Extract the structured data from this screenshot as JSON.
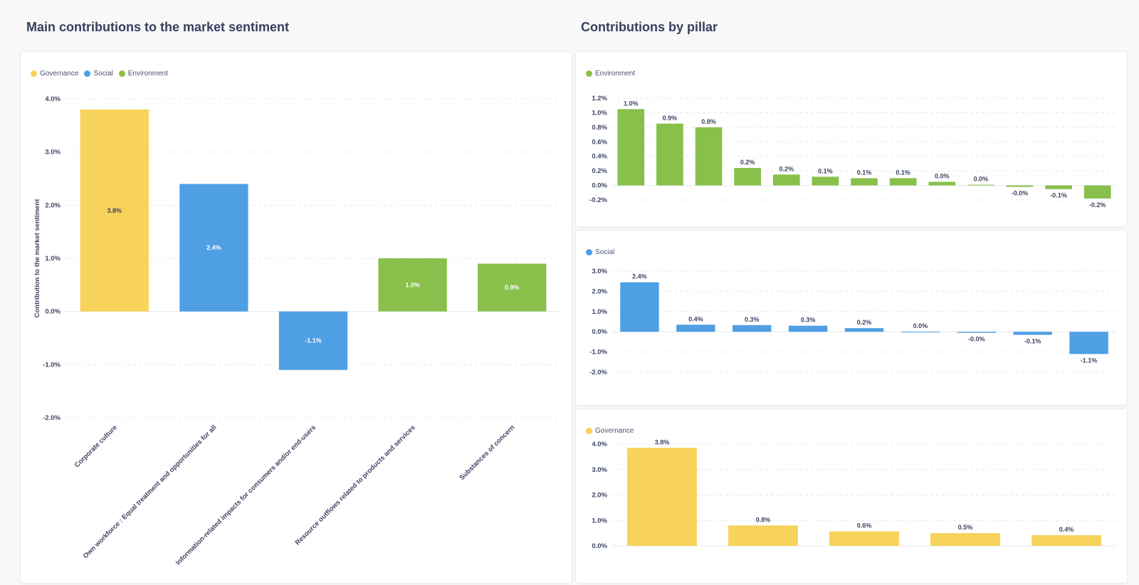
{
  "main": {
    "title": "Main contributions to the market sentiment"
  },
  "pillar": {
    "title": "Contributions by pillar"
  },
  "colors": {
    "Governance": "#f8d35b",
    "Social": "#4e9fe4",
    "Environment": "#88c04b"
  },
  "chart_data": [
    {
      "type": "bar",
      "title": "Main contributions to the market sentiment",
      "ylabel": "Contribution to the market sentiment",
      "xlabel": "",
      "legend": [
        "Governance",
        "Social",
        "Environment"
      ],
      "categories": [
        "Corporate culture",
        "Own workforce : Equal treatment and opportunities for all",
        "Information-related impacts for consumers and/or end-users",
        "Resource outflows related to products and services",
        "Substances of concern"
      ],
      "series_of_bar": [
        "Governance",
        "Social",
        "Social",
        "Environment",
        "Environment"
      ],
      "values": [
        3.8,
        2.4,
        -1.1,
        1.0,
        0.9
      ],
      "value_labels": [
        "3.8%",
        "2.4%",
        "-1.1%",
        "1.0%",
        "0.9%"
      ],
      "ylim": [
        -2.0,
        4.0
      ],
      "yticks": [
        4.0,
        3.0,
        2.0,
        1.0,
        0.0,
        -1.0,
        -2.0
      ],
      "ytick_labels": [
        "4.0%",
        "3.0%",
        "2.0%",
        "1.0%",
        "0.0%",
        "-1.0%",
        "-2.0%"
      ]
    },
    {
      "type": "bar",
      "title": "Environment",
      "legend": [
        "Environment"
      ],
      "values": [
        1.05,
        0.85,
        0.8,
        0.24,
        0.15,
        0.12,
        0.1,
        0.1,
        0.05,
        0.01,
        -0.02,
        -0.05,
        -0.18
      ],
      "value_labels": [
        "1.0%",
        "0.9%",
        "0.8%",
        "0.2%",
        "0.2%",
        "0.1%",
        "0.1%",
        "0.1%",
        "0.0%",
        "0.0%",
        "-0.0%",
        "-0.1%",
        "-0.2%"
      ],
      "ylim": [
        -0.2,
        1.2
      ],
      "yticks": [
        1.2,
        1.0,
        0.8,
        0.6,
        0.4,
        0.2,
        0.0,
        -0.2
      ],
      "ytick_labels": [
        "1.2%",
        "1.0%",
        "0.8%",
        "0.6%",
        "0.4%",
        "0.2%",
        "0.0%",
        "-0.2%"
      ]
    },
    {
      "type": "bar",
      "title": "Social",
      "legend": [
        "Social"
      ],
      "values": [
        2.45,
        0.35,
        0.33,
        0.3,
        0.18,
        0.0,
        -0.05,
        -0.15,
        -1.1
      ],
      "value_labels": [
        "2.4%",
        "0.4%",
        "0.3%",
        "0.3%",
        "0.2%",
        "0.0%",
        "-0.0%",
        "-0.1%",
        "-1.1%"
      ],
      "ylim": [
        -2.0,
        3.0
      ],
      "yticks": [
        3.0,
        2.0,
        1.0,
        0.0,
        -1.0,
        -2.0
      ],
      "ytick_labels": [
        "3.0%",
        "2.0%",
        "1.0%",
        "0.0%",
        "-1.0%",
        "-2.0%"
      ]
    },
    {
      "type": "bar",
      "title": "Governance",
      "legend": [
        "Governance"
      ],
      "values": [
        3.85,
        0.8,
        0.57,
        0.5,
        0.42
      ],
      "value_labels": [
        "3.8%",
        "0.8%",
        "0.6%",
        "0.5%",
        "0.4%"
      ],
      "ylim": [
        0.0,
        4.0
      ],
      "yticks": [
        4.0,
        3.0,
        2.0,
        1.0,
        0.0
      ],
      "ytick_labels": [
        "4.0%",
        "3.0%",
        "2.0%",
        "1.0%",
        "0.0%"
      ]
    }
  ]
}
